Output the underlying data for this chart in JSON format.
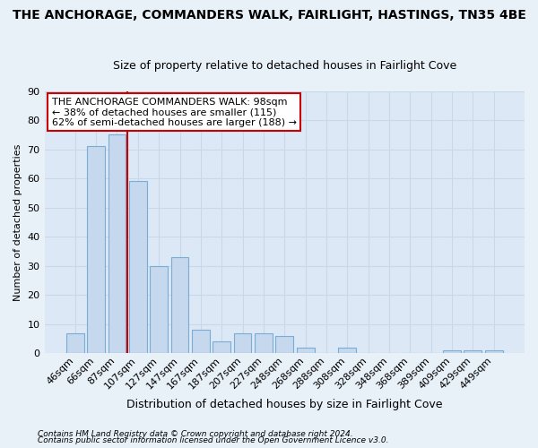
{
  "title": "THE ANCHORAGE, COMMANDERS WALK, FAIRLIGHT, HASTINGS, TN35 4BE",
  "subtitle": "Size of property relative to detached houses in Fairlight Cove",
  "xlabel": "Distribution of detached houses by size in Fairlight Cove",
  "ylabel": "Number of detached properties",
  "categories": [
    "46sqm",
    "66sqm",
    "87sqm",
    "107sqm",
    "127sqm",
    "147sqm",
    "167sqm",
    "187sqm",
    "207sqm",
    "227sqm",
    "248sqm",
    "268sqm",
    "288sqm",
    "308sqm",
    "328sqm",
    "348sqm",
    "368sqm",
    "389sqm",
    "409sqm",
    "429sqm",
    "449sqm"
  ],
  "values": [
    7,
    71,
    75,
    59,
    30,
    33,
    8,
    4,
    7,
    7,
    6,
    2,
    0,
    2,
    0,
    0,
    0,
    0,
    1,
    1,
    1
  ],
  "bar_color": "#c5d8ee",
  "bar_edge_color": "#7aadd4",
  "grid_color": "#c8d8e8",
  "background_color": "#dce8f5",
  "fig_background_color": "#e8f0f8",
  "vline_x": 2.5,
  "vline_color": "#cc0000",
  "annotation_line1": "THE ANCHORAGE COMMANDERS WALK: 98sqm",
  "annotation_line2": "← 38% of detached houses are smaller (115)",
  "annotation_line3": "62% of semi-detached houses are larger (188) →",
  "annotation_box_color": "#ffffff",
  "annotation_box_edge": "#cc0000",
  "footer1": "Contains HM Land Registry data © Crown copyright and database right 2024.",
  "footer2": "Contains public sector information licensed under the Open Government Licence v3.0.",
  "ylim": [
    0,
    90
  ],
  "yticks": [
    0,
    10,
    20,
    30,
    40,
    50,
    60,
    70,
    80,
    90
  ],
  "title_fontsize": 10,
  "subtitle_fontsize": 9,
  "ylabel_fontsize": 8,
  "xlabel_fontsize": 9,
  "tick_fontsize": 8,
  "annotation_fontsize": 8
}
